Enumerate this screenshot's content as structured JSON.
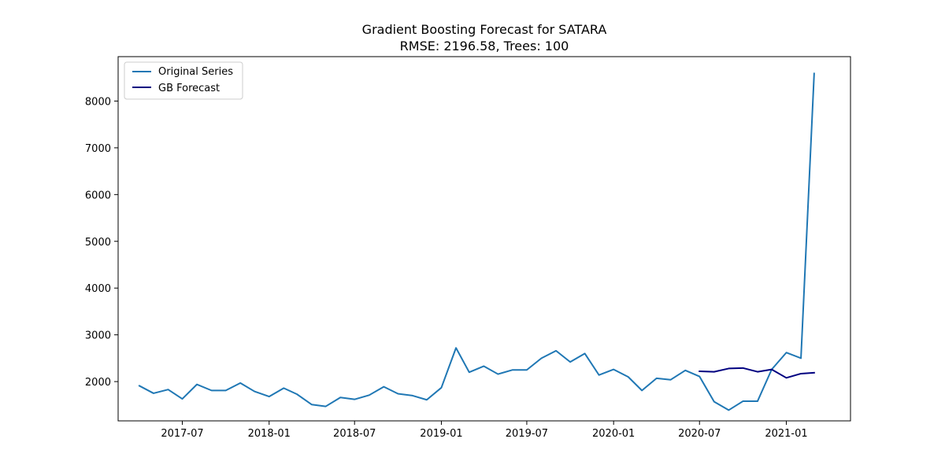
{
  "chart_data": {
    "type": "line",
    "title": "Gradient Boosting Forecast for SATARA",
    "subtitle": "RMSE: 2196.58, Trees: 100",
    "xlabel": "",
    "ylabel": "",
    "x_type": "date",
    "xlim": [
      "2017-02-15",
      "2021-05-17"
    ],
    "ylim": [
      1160,
      8950
    ],
    "x_ticks": [
      "2017-07-01",
      "2018-01-01",
      "2018-07-01",
      "2019-01-01",
      "2019-07-01",
      "2020-01-01",
      "2020-07-01",
      "2021-01-01"
    ],
    "x_tick_labels": [
      "2017-07",
      "2018-01",
      "2018-07",
      "2019-01",
      "2019-07",
      "2020-01",
      "2020-07",
      "2021-01"
    ],
    "y_ticks": [
      2000,
      3000,
      4000,
      5000,
      6000,
      7000,
      8000
    ],
    "y_tick_labels": [
      "2000",
      "3000",
      "4000",
      "5000",
      "6000",
      "7000",
      "8000"
    ],
    "grid": false,
    "legend": {
      "placement": "top-left"
    },
    "series": [
      {
        "name": "Original Series",
        "color": "#1f77b4",
        "x": [
          "2017-04-01",
          "2017-05-01",
          "2017-06-01",
          "2017-07-01",
          "2017-08-01",
          "2017-09-01",
          "2017-10-01",
          "2017-11-01",
          "2017-12-01",
          "2018-01-01",
          "2018-02-01",
          "2018-03-01",
          "2018-04-01",
          "2018-05-01",
          "2018-06-01",
          "2018-07-01",
          "2018-08-01",
          "2018-09-01",
          "2018-10-01",
          "2018-11-01",
          "2018-12-01",
          "2019-01-01",
          "2019-02-01",
          "2019-03-01",
          "2019-04-01",
          "2019-05-01",
          "2019-06-01",
          "2019-07-01",
          "2019-08-01",
          "2019-09-01",
          "2019-10-01",
          "2019-11-01",
          "2019-12-01",
          "2020-01-01",
          "2020-02-01",
          "2020-03-01",
          "2020-04-01",
          "2020-05-01",
          "2020-06-01",
          "2020-07-01",
          "2020-08-01",
          "2020-09-01",
          "2020-10-01",
          "2020-11-01",
          "2020-12-01",
          "2021-01-01",
          "2021-02-01",
          "2021-03-01"
        ],
        "y": [
          1910,
          1750,
          1830,
          1630,
          1940,
          1810,
          1810,
          1970,
          1790,
          1680,
          1860,
          1730,
          1510,
          1470,
          1660,
          1620,
          1710,
          1890,
          1740,
          1700,
          1610,
          1870,
          2720,
          2200,
          2330,
          2160,
          2250,
          2250,
          2500,
          2660,
          2420,
          2600,
          2140,
          2260,
          2100,
          1810,
          2070,
          2040,
          2240,
          2110,
          1570,
          1390,
          1580,
          1580,
          2260,
          2620,
          2500,
          8590
        ]
      },
      {
        "name": "GB Forecast",
        "color": "#000080",
        "x": [
          "2020-07-01",
          "2020-08-01",
          "2020-09-01",
          "2020-10-01",
          "2020-11-01",
          "2020-12-01",
          "2021-01-01",
          "2021-02-01",
          "2021-03-01"
        ],
        "y": [
          2220,
          2210,
          2280,
          2290,
          2210,
          2260,
          2080,
          2170,
          2190
        ]
      }
    ]
  }
}
